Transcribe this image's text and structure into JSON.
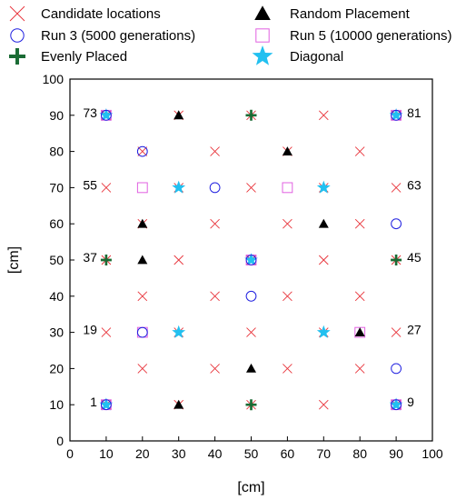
{
  "chart_data": {
    "type": "scatter",
    "xlabel": "[cm]",
    "ylabel": "[cm]",
    "xlim": [
      0,
      100
    ],
    "ylim": [
      0,
      100
    ],
    "xticks": [
      0,
      10,
      20,
      30,
      40,
      50,
      60,
      70,
      80,
      90,
      100
    ],
    "yticks": [
      0,
      10,
      20,
      30,
      40,
      50,
      60,
      70,
      80,
      90,
      100
    ],
    "grid": false,
    "legend_position": "top",
    "series": [
      {
        "name": "Candidate locations",
        "marker": "x",
        "color": "#e8333a",
        "points": [
          [
            10,
            10
          ],
          [
            30,
            10
          ],
          [
            50,
            10
          ],
          [
            70,
            10
          ],
          [
            90,
            10
          ],
          [
            20,
            20
          ],
          [
            40,
            20
          ],
          [
            60,
            20
          ],
          [
            80,
            20
          ],
          [
            10,
            30
          ],
          [
            30,
            30
          ],
          [
            50,
            30
          ],
          [
            70,
            30
          ],
          [
            90,
            30
          ],
          [
            20,
            40
          ],
          [
            40,
            40
          ],
          [
            60,
            40
          ],
          [
            80,
            40
          ],
          [
            10,
            50
          ],
          [
            30,
            50
          ],
          [
            50,
            50
          ],
          [
            70,
            50
          ],
          [
            90,
            50
          ],
          [
            20,
            60
          ],
          [
            40,
            60
          ],
          [
            60,
            60
          ],
          [
            80,
            60
          ],
          [
            10,
            70
          ],
          [
            30,
            70
          ],
          [
            50,
            70
          ],
          [
            70,
            70
          ],
          [
            90,
            70
          ],
          [
            20,
            80
          ],
          [
            40,
            80
          ],
          [
            60,
            80
          ],
          [
            80,
            80
          ],
          [
            10,
            90
          ],
          [
            30,
            90
          ],
          [
            50,
            90
          ],
          [
            70,
            90
          ],
          [
            90,
            90
          ]
        ]
      },
      {
        "name": "Random Placement",
        "marker": "triangle",
        "color": "#000000",
        "points": [
          [
            30,
            10
          ],
          [
            50,
            20
          ],
          [
            80,
            30
          ],
          [
            20,
            50
          ],
          [
            20,
            60
          ],
          [
            70,
            60
          ],
          [
            60,
            80
          ],
          [
            30,
            90
          ]
        ]
      },
      {
        "name": "Run 3 (5000 generations)",
        "marker": "circle",
        "color": "#2020e0",
        "points": [
          [
            10,
            10
          ],
          [
            90,
            10
          ],
          [
            90,
            20
          ],
          [
            20,
            30
          ],
          [
            50,
            40
          ],
          [
            50,
            50
          ],
          [
            90,
            60
          ],
          [
            40,
            70
          ],
          [
            20,
            80
          ],
          [
            10,
            90
          ],
          [
            90,
            90
          ]
        ]
      },
      {
        "name": "Run 5 (10000 generations)",
        "marker": "square",
        "color": "#e060e0",
        "points": [
          [
            10,
            10
          ],
          [
            90,
            10
          ],
          [
            20,
            30
          ],
          [
            80,
            30
          ],
          [
            50,
            50
          ],
          [
            20,
            70
          ],
          [
            60,
            70
          ],
          [
            10,
            90
          ],
          [
            90,
            90
          ]
        ]
      },
      {
        "name": "Evenly Placed",
        "marker": "plus",
        "color": "#1a6b34",
        "points": [
          [
            50,
            10
          ],
          [
            10,
            50
          ],
          [
            90,
            50
          ],
          [
            50,
            90
          ]
        ]
      },
      {
        "name": "Diagonal",
        "marker": "star",
        "color": "#22c0f0",
        "points": [
          [
            10,
            10
          ],
          [
            90,
            10
          ],
          [
            30,
            30
          ],
          [
            70,
            30
          ],
          [
            50,
            50
          ],
          [
            30,
            70
          ],
          [
            70,
            70
          ],
          [
            10,
            90
          ],
          [
            90,
            90
          ]
        ]
      }
    ],
    "annotations": [
      {
        "text": "1",
        "x": 10,
        "y": 10,
        "side": "left"
      },
      {
        "text": "9",
        "x": 90,
        "y": 10,
        "side": "right"
      },
      {
        "text": "19",
        "x": 10,
        "y": 30,
        "side": "left"
      },
      {
        "text": "27",
        "x": 90,
        "y": 30,
        "side": "right"
      },
      {
        "text": "37",
        "x": 10,
        "y": 50,
        "side": "left"
      },
      {
        "text": "45",
        "x": 90,
        "y": 50,
        "side": "right"
      },
      {
        "text": "55",
        "x": 10,
        "y": 70,
        "side": "left"
      },
      {
        "text": "63",
        "x": 90,
        "y": 70,
        "side": "right"
      },
      {
        "text": "73",
        "x": 10,
        "y": 90,
        "side": "left"
      },
      {
        "text": "81",
        "x": 90,
        "y": 90,
        "side": "right"
      }
    ]
  }
}
